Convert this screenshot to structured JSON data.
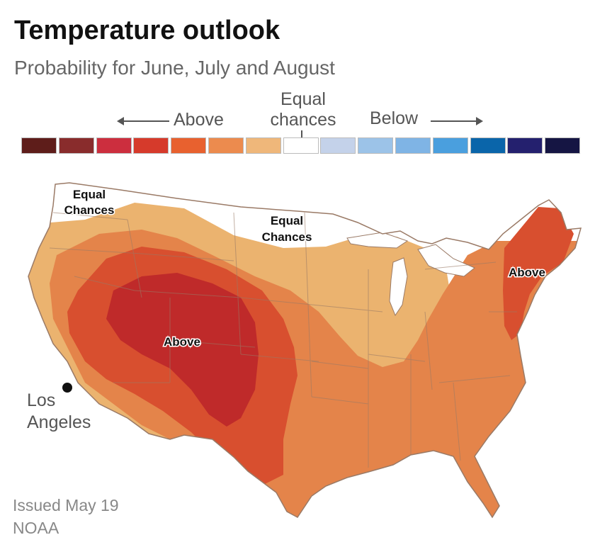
{
  "title": "Temperature outlook",
  "subtitle": "Probability for June, July and August",
  "legend": {
    "above_label": "Above",
    "equal_line1": "Equal",
    "equal_line2": "chances",
    "below_label": "Below",
    "swatches": [
      "#5e1d1a",
      "#892c2c",
      "#cc2e3e",
      "#d63a2b",
      "#e8612f",
      "#ec8b4e",
      "#efb77a",
      "#ffffff",
      "#c4d2ea",
      "#9cc3e8",
      "#7fb4e5",
      "#4a9fde",
      "#0a65aa",
      "#24206e",
      "#151543"
    ]
  },
  "map": {
    "region_labels": {
      "nw_equal_line1": "Equal",
      "nw_equal_line2": "Chances",
      "n_equal_line1": "Equal",
      "n_equal_line2": "Chances",
      "west_above": "Above",
      "ne_above": "Above"
    },
    "city": {
      "line1": "Los",
      "line2": "Angeles"
    },
    "colors": {
      "equal": "#ffffff",
      "light": "#ebb36f",
      "medium": "#e4844a",
      "dark": "#d84f2f",
      "darkest": "#bf2a2a",
      "border": "#9a7a66"
    }
  },
  "footer": {
    "issued": "Issued May 19",
    "source": "NOAA"
  }
}
